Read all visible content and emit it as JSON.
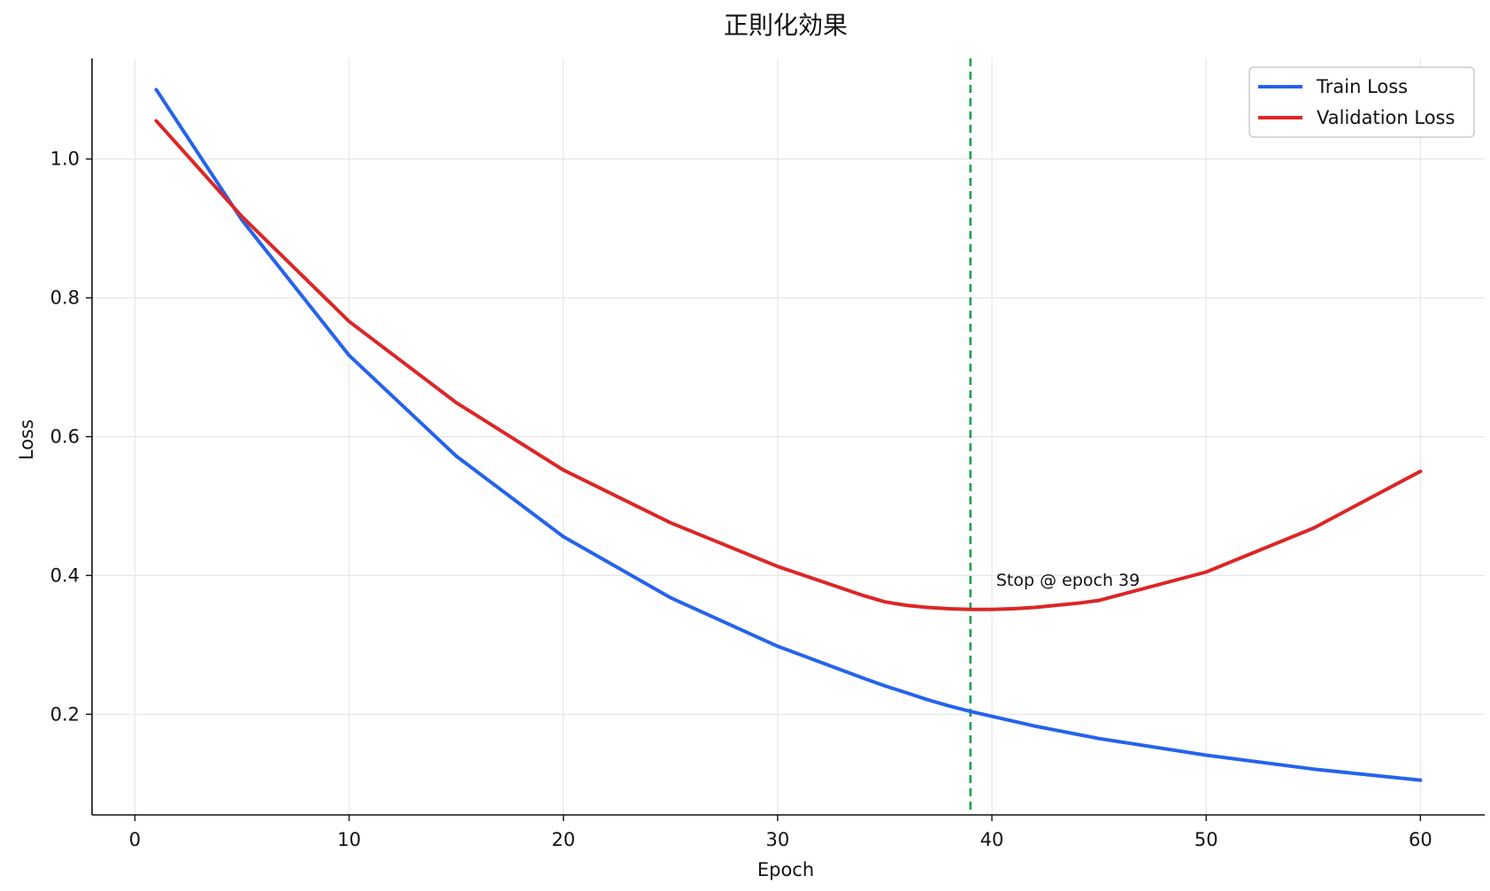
{
  "chart_data": {
    "type": "line",
    "title": "正則化効果",
    "xlabel": "Epoch",
    "ylabel": "Loss",
    "xlim": [
      -2,
      63
    ],
    "ylim": [
      0.055,
      1.145
    ],
    "xticks": [
      0,
      10,
      20,
      30,
      40,
      50,
      60
    ],
    "yticks": [
      0.2,
      0.4,
      0.6,
      0.8,
      1.0
    ],
    "xtick_labels": [
      "0",
      "10",
      "20",
      "30",
      "40",
      "50",
      "60"
    ],
    "ytick_labels": [
      "0.2",
      "0.4",
      "0.6",
      "0.8",
      "1.0"
    ],
    "grid": true,
    "legend_position": "top-right",
    "x": [
      1,
      5,
      10,
      15,
      20,
      25,
      30,
      34,
      35,
      36,
      37,
      38,
      39,
      40,
      41,
      42,
      43,
      44,
      45,
      50,
      55,
      60
    ],
    "series": [
      {
        "name": "Train Loss",
        "color": "#2563eb",
        "values": [
          1.1,
          0.912,
          0.717,
          0.572,
          0.456,
          0.368,
          0.298,
          0.252,
          0.241,
          0.231,
          0.221,
          0.212,
          0.204,
          0.197,
          0.19,
          0.183,
          0.177,
          0.171,
          0.165,
          0.141,
          0.121,
          0.105
        ]
      },
      {
        "name": "Validation Loss",
        "color": "#dc2626",
        "values": [
          1.055,
          0.917,
          0.766,
          0.649,
          0.552,
          0.476,
          0.413,
          0.371,
          0.362,
          0.357,
          0.354,
          0.352,
          0.351,
          0.351,
          0.352,
          0.354,
          0.357,
          0.36,
          0.364,
          0.405,
          0.468,
          0.55
        ]
      }
    ],
    "vline": {
      "x": 39,
      "color": "#16a34a",
      "style": "dashed"
    },
    "annotation": {
      "text": "Stop @ epoch 39",
      "x": 40.2,
      "y": 0.385
    }
  }
}
